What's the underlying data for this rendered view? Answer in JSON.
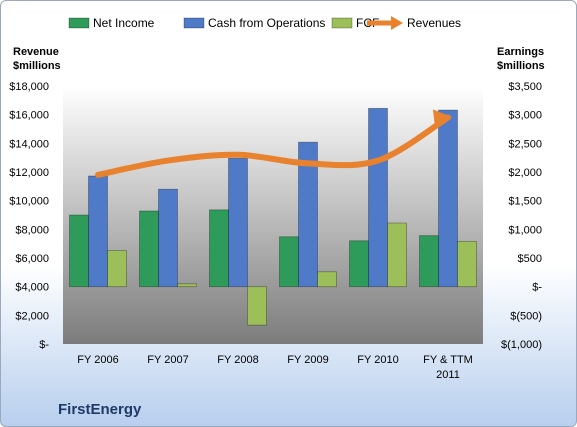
{
  "company": "FirstEnergy",
  "chart_data": {
    "type": "bar",
    "categories": [
      "FY 2006",
      "FY 2007",
      "FY 2008",
      "FY 2009",
      "FY 2010",
      "FY & TTM 2011"
    ],
    "category_lines": [
      [
        "FY 2006"
      ],
      [
        "FY 2007"
      ],
      [
        "FY 2008"
      ],
      [
        "FY 2009"
      ],
      [
        "FY 2010"
      ],
      [
        "FY & TTM",
        "2011"
      ]
    ],
    "left_axis": {
      "title_lines": [
        "Revenue",
        "$millions"
      ],
      "ylim": [
        0,
        18000
      ],
      "ticks": [
        0,
        2000,
        4000,
        6000,
        8000,
        10000,
        12000,
        14000,
        16000,
        18000
      ],
      "tick_labels": [
        "$-",
        "$2,000",
        "$4,000",
        "$6,000",
        "$8,000",
        "$10,000",
        "$12,000",
        "$14,000",
        "$16,000",
        "$18,000"
      ]
    },
    "right_axis": {
      "title_lines": [
        "Earnings",
        "$millions"
      ],
      "ylim": [
        -1000,
        3500
      ],
      "ticks": [
        -1000,
        -500,
        0,
        500,
        1000,
        1500,
        2000,
        2500,
        3000,
        3500
      ],
      "tick_labels": [
        "$(1,000)",
        "$(500)",
        "$-",
        "$500",
        "$1,000",
        "$1,500",
        "$2,000",
        "$2,500",
        "$3,000",
        "$3,500"
      ]
    },
    "series": [
      {
        "name": "Net Income",
        "axis": "right",
        "kind": "bar",
        "color": "#2e9b5a",
        "values": [
          1250,
          1320,
          1340,
          870,
          800,
          890
        ]
      },
      {
        "name": "Cash from Operations",
        "axis": "right",
        "kind": "bar",
        "color": "#4f7ac7",
        "values": [
          1930,
          1700,
          2240,
          2520,
          3110,
          3080
        ]
      },
      {
        "name": "FCF",
        "axis": "right",
        "kind": "bar",
        "color": "#9cbf5a",
        "values": [
          630,
          50,
          -670,
          260,
          1110,
          790
        ]
      },
      {
        "name": "Revenues",
        "axis": "left",
        "kind": "line",
        "color": "#e8822e",
        "values": [
          11800,
          12800,
          13200,
          12600,
          12800,
          15800
        ]
      }
    ],
    "legend_position": "top",
    "grid": false
  }
}
